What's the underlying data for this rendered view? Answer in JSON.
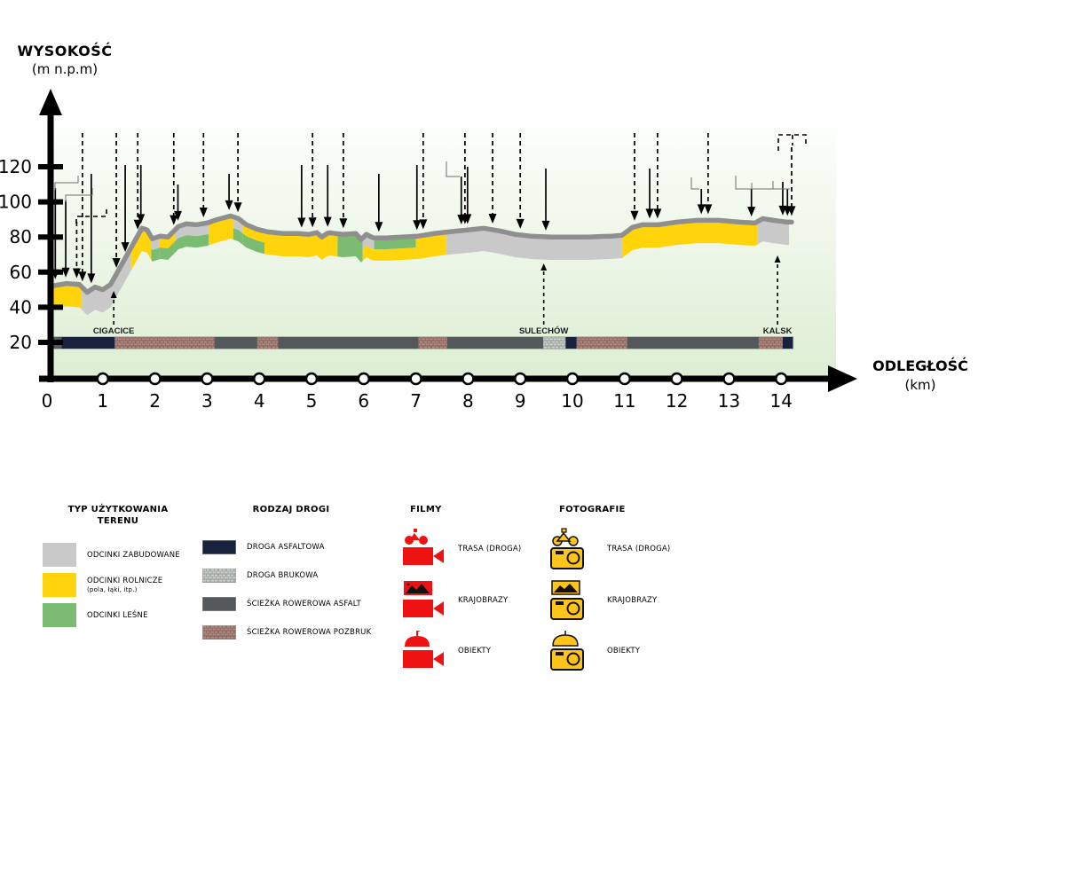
{
  "y_axis": {
    "title": "WYSOKOŚĆ",
    "unit": "(m n.p.m)",
    "ticks": [
      120,
      100,
      80,
      60,
      40,
      20
    ]
  },
  "x_axis": {
    "title": "ODLEGŁOŚĆ",
    "unit": "(km)",
    "ticks": [
      0,
      1,
      2,
      3,
      4,
      5,
      6,
      7,
      8,
      9,
      10,
      11,
      12,
      13,
      14
    ]
  },
  "colors": {
    "zabudowane": "#C9C9C9",
    "rolnicze": "#FFD40A",
    "lesne": "#7CBB72",
    "road_line": "#8F8F8F",
    "bg_top": "#FCFEFA",
    "bg_bottom": "#DDEED4",
    "asfaltowa": "#18223C",
    "rower_asfalt": "#54585A",
    "pozbruk_brick": "#B28A82",
    "pozbruk_grout": "#84675F",
    "brukowa_brick": "#CDD0CC",
    "brukowa_grout": "#98A09A",
    "film_red": "#EE1212",
    "photo_yellow": "#FFC41A"
  },
  "chart_data": {
    "type": "area",
    "title": "Elevation profile of cycling route",
    "xlabel": "ODLEGŁOŚĆ (km)",
    "ylabel": "WYSOKOŚĆ (m n.p.m)",
    "xlim": [
      0,
      14.3
    ],
    "ylim": [
      20,
      135
    ],
    "grid": false,
    "profile": [
      [
        0,
        52
      ],
      [
        0.3,
        53.5
      ],
      [
        0.55,
        53
      ],
      [
        0.7,
        48.5
      ],
      [
        0.85,
        51.5
      ],
      [
        1.0,
        50
      ],
      [
        1.15,
        53
      ],
      [
        1.75,
        85
      ],
      [
        1.85,
        84
      ],
      [
        1.95,
        79
      ],
      [
        2.1,
        80.5
      ],
      [
        2.25,
        80
      ],
      [
        2.45,
        86
      ],
      [
        2.6,
        87.5
      ],
      [
        2.8,
        87
      ],
      [
        3.0,
        88
      ],
      [
        3.2,
        90
      ],
      [
        3.45,
        92
      ],
      [
        3.6,
        90.5
      ],
      [
        3.75,
        87
      ],
      [
        3.95,
        84.5
      ],
      [
        4.15,
        83
      ],
      [
        4.45,
        82
      ],
      [
        4.75,
        82
      ],
      [
        4.95,
        81.5
      ],
      [
        5.1,
        82.5
      ],
      [
        5.2,
        80
      ],
      [
        5.32,
        82.5
      ],
      [
        5.6,
        81.5
      ],
      [
        5.85,
        82
      ],
      [
        5.95,
        78.5
      ],
      [
        6.05,
        81.5
      ],
      [
        6.18,
        79.5
      ],
      [
        6.45,
        79.5
      ],
      [
        6.75,
        80
      ],
      [
        7.05,
        80.5
      ],
      [
        7.35,
        82
      ],
      [
        7.65,
        83
      ],
      [
        8.0,
        84
      ],
      [
        8.3,
        85
      ],
      [
        8.6,
        83.5
      ],
      [
        8.9,
        81.5
      ],
      [
        9.2,
        80.5
      ],
      [
        9.6,
        80
      ],
      [
        10.3,
        80
      ],
      [
        10.75,
        80.5
      ],
      [
        10.95,
        81
      ],
      [
        11.15,
        85.5
      ],
      [
        11.35,
        87
      ],
      [
        11.65,
        87
      ],
      [
        12.0,
        88.5
      ],
      [
        12.4,
        89.5
      ],
      [
        12.8,
        89.5
      ],
      [
        13.2,
        88.5
      ],
      [
        13.5,
        88
      ],
      [
        13.65,
        90.5
      ],
      [
        13.85,
        89.5
      ],
      [
        14.1,
        88.5
      ],
      [
        14.2,
        88.5
      ]
    ],
    "band_thickness_m": 13,
    "land_use_segments": [
      {
        "from": 0.0,
        "to": 0.6,
        "upper": "rolnicze"
      },
      {
        "from": 0.6,
        "to": 1.55,
        "upper": "zabudowane"
      },
      {
        "from": 1.55,
        "to": 1.93,
        "upper": "rolnicze"
      },
      {
        "from": 1.93,
        "to": 2.08,
        "upper": "zabudowane",
        "lower": "lesne"
      },
      {
        "from": 2.08,
        "to": 2.38,
        "upper": "rolnicze",
        "lower": "lesne"
      },
      {
        "from": 2.38,
        "to": 3.03,
        "upper": "zabudowane",
        "lower": "lesne"
      },
      {
        "from": 3.03,
        "to": 3.5,
        "upper": "rolnicze"
      },
      {
        "from": 3.5,
        "to": 3.68,
        "upper": "zabudowane",
        "lower": "lesne"
      },
      {
        "from": 3.68,
        "to": 4.1,
        "upper": "rolnicze",
        "lower": "lesne"
      },
      {
        "from": 4.1,
        "to": 5.5,
        "upper": "rolnicze"
      },
      {
        "from": 5.5,
        "to": 5.98,
        "upper": "lesne"
      },
      {
        "from": 5.98,
        "to": 6.2,
        "upper": "zabudowane",
        "lower": "rolnicze"
      },
      {
        "from": 6.2,
        "to": 7.0,
        "upper": "lesne",
        "lower": "rolnicze"
      },
      {
        "from": 7.0,
        "to": 7.58,
        "upper": "rolnicze"
      },
      {
        "from": 7.58,
        "to": 10.95,
        "upper": "zabudowane"
      },
      {
        "from": 10.95,
        "to": 13.55,
        "upper": "rolnicze"
      },
      {
        "from": 13.55,
        "to": 14.15,
        "upper": "zabudowane"
      }
    ],
    "road_segments": [
      {
        "from": 0.0,
        "to": 0.21,
        "type": "rower_asfalt"
      },
      {
        "from": 0.21,
        "to": 1.23,
        "type": "asfaltowa"
      },
      {
        "from": 1.23,
        "to": 3.14,
        "type": "pozbruk"
      },
      {
        "from": 3.14,
        "to": 3.96,
        "type": "rower_asfalt"
      },
      {
        "from": 3.96,
        "to": 4.36,
        "type": "pozbruk"
      },
      {
        "from": 4.36,
        "to": 7.05,
        "type": "rower_asfalt"
      },
      {
        "from": 7.05,
        "to": 7.6,
        "type": "pozbruk"
      },
      {
        "from": 7.6,
        "to": 9.44,
        "type": "rower_asfalt"
      },
      {
        "from": 9.44,
        "to": 9.87,
        "type": "brukowa"
      },
      {
        "from": 9.87,
        "to": 10.08,
        "type": "asfaltowa"
      },
      {
        "from": 10.08,
        "to": 11.05,
        "type": "pozbruk"
      },
      {
        "from": 11.05,
        "to": 13.57,
        "type": "rower_asfalt"
      },
      {
        "from": 13.57,
        "to": 14.03,
        "type": "pozbruk"
      },
      {
        "from": 14.03,
        "to": 14.22,
        "type": "asfaltowa"
      }
    ],
    "places": [
      {
        "name": "CIGACICE",
        "km": 1.21,
        "tip_y": 328
      },
      {
        "name": "SULECHÓW",
        "km": 9.45,
        "tip_y": 297
      },
      {
        "name": "KALSK",
        "km": 13.93,
        "tip_y": 288
      }
    ],
    "film_markers": [
      [
        0.09,
        212
      ],
      [
        0.29,
        226
      ],
      [
        0.78,
        196
      ],
      [
        1.43,
        186
      ],
      [
        1.73,
        186
      ],
      [
        2.44,
        208
      ],
      [
        3.42,
        196
      ],
      [
        4.81,
        186
      ],
      [
        5.31,
        186
      ],
      [
        6.29,
        196
      ],
      [
        7.02,
        186
      ],
      [
        7.87,
        199
      ],
      [
        7.99,
        188
      ],
      [
        9.49,
        190
      ],
      [
        11.48,
        190
      ],
      [
        12.47,
        213
      ],
      [
        13.43,
        213
      ],
      [
        14.03,
        205
      ],
      [
        14.12,
        213
      ]
    ],
    "photo_markers": [
      [
        0.5,
        250
      ],
      [
        0.61,
        150
      ],
      [
        1.26,
        150
      ],
      [
        1.67,
        150
      ],
      [
        2.36,
        150
      ],
      [
        2.93,
        150
      ],
      [
        3.59,
        150
      ],
      [
        5.02,
        150
      ],
      [
        5.61,
        150
      ],
      [
        7.14,
        150
      ],
      [
        7.94,
        150
      ],
      [
        8.47,
        150
      ],
      [
        9.0,
        150
      ],
      [
        11.19,
        150
      ],
      [
        11.63,
        150
      ],
      [
        12.6,
        150
      ],
      [
        14.2,
        166
      ]
    ],
    "connectors_solid": [
      "62,214 62,206 88,206 88,198",
      "74,228 74,220 104,220 104,212",
      "503,182 503,199 518,199",
      "779,200 779,213 788,213",
      "829,198 829,213 890,213",
      "871,213 871,204",
      "847,213 847,206"
    ],
    "connectors_dashed": [
      "86,252 86,244 120,244 120,236",
      "877,170 877,152 908,152 908,163",
      "893,152 893,164"
    ]
  },
  "legend": {
    "teren": {
      "title_line1": "TYP UŻYTKOWANIA",
      "title_line2": "TERENU",
      "items": [
        {
          "label": "ODCINKI ZABUDOWANE",
          "sub": ""
        },
        {
          "label": "ODCINKI ROLNICZE",
          "sub": "(pola, łąki, itp.)"
        },
        {
          "label": "ODCINKI LEŚNE",
          "sub": ""
        }
      ]
    },
    "droga": {
      "title": "RODZAJ DROGI",
      "items": [
        {
          "label": "DROGA ASFALTOWA"
        },
        {
          "label": "DROGA BRUKOWA"
        },
        {
          "label": "ŚCIEŻKA ROWEROWA ASFALT"
        },
        {
          "label": "ŚCIEŻKA ROWEROWA POZBRUK"
        }
      ]
    },
    "filmy": {
      "title": "FILMY",
      "items": [
        {
          "label": "TRASA (DROGA)"
        },
        {
          "label": "KRAJOBRAZY"
        },
        {
          "label": "OBIEKTY"
        }
      ]
    },
    "fotografie": {
      "title": "FOTOGRAFIE",
      "items": [
        {
          "label": "TRASA (DROGA)"
        },
        {
          "label": "KRAJOBRAZY"
        },
        {
          "label": "OBIEKTY"
        }
      ]
    }
  }
}
